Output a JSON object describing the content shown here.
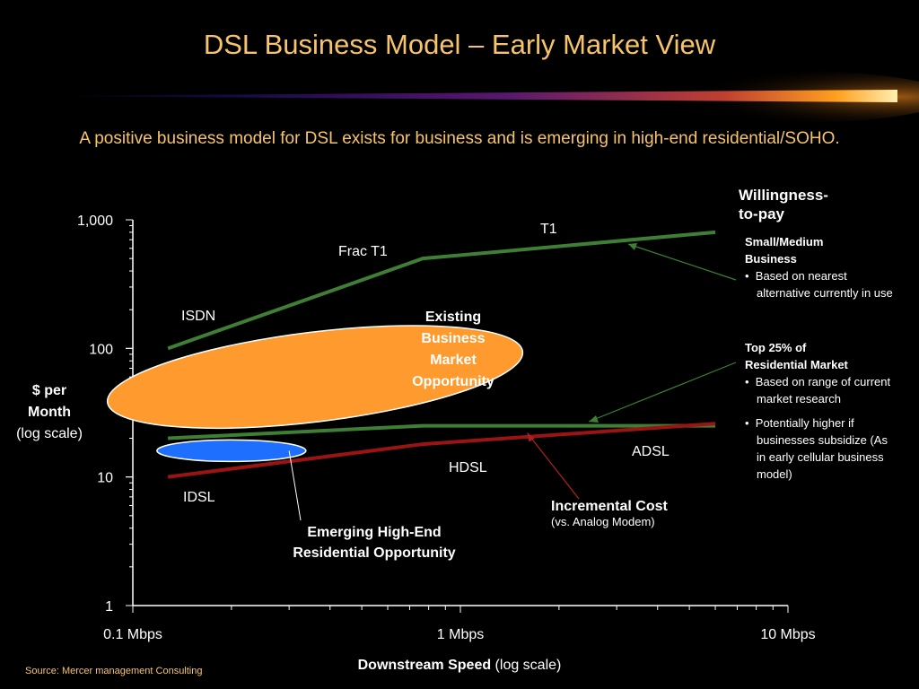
{
  "title": "DSL Business Model – Early Market View",
  "subtitle": "A positive business model for DSL exists for business and is emerging in high-end residential/SOHO.",
  "source": "Source: Mercer management Consulting",
  "colors": {
    "title": "#f7c46c",
    "willingness_line": "#3f7f35",
    "cost_line": "#9b1414",
    "ellipse_existing": "#ff9a2e",
    "ellipse_emerging": "#1f6fff"
  },
  "chart_data": {
    "type": "line",
    "x_scale": "log",
    "y_scale": "log",
    "xlim": [
      0.1,
      10
    ],
    "ylim": [
      1,
      1000
    ],
    "x_ticks": [
      "0.1 Mbps",
      "1 Mbps",
      "10 Mbps"
    ],
    "y_ticks": [
      "1",
      "10",
      "100",
      "1,000"
    ],
    "xlabel_bold": "Downstream Speed",
    "xlabel_rest": " (log scale)",
    "ylabel_line1": "$ per",
    "ylabel_line2": "Month",
    "ylabel_line3": "(log scale)",
    "series": [
      {
        "name": "Willingness-to-pay: Small/Medium Business",
        "x": [
          0.128,
          0.768,
          6.0
        ],
        "y": [
          100,
          500,
          800
        ]
      },
      {
        "name": "Willingness-to-pay: Top 25% of Residential Market",
        "x": [
          0.128,
          0.768,
          6.0
        ],
        "y": [
          20,
          25,
          25
        ]
      },
      {
        "name": "Incremental Cost",
        "x": [
          0.128,
          0.768,
          6.0
        ],
        "y": [
          10,
          18,
          26
        ]
      }
    ],
    "point_labels": {
      "isdn": "ISDN",
      "frac_t1": "Frac T1",
      "t1": "T1",
      "idsl": "IDSL",
      "hdsl": "HDSL",
      "adsl": "ADSL"
    }
  },
  "annotations": {
    "existing_line1": "Existing",
    "existing_line2": "Business",
    "existing_line3": "Market",
    "existing_line4": "Opportunity",
    "emerging_line1": "Emerging High-End",
    "emerging_line2": "Residential Opportunity",
    "incremental_title": "Incremental Cost",
    "incremental_sub": "(vs. Analog Modem)"
  },
  "willingness": {
    "line1": "Willingness-",
    "line2": "to-pay",
    "smb_head1": "Small/Medium",
    "smb_head2": "Business",
    "smb_bullet": "Based on nearest alternative currently in use",
    "res_head1": "Top 25% of",
    "res_head2": "Residential Market",
    "res_bullet1": "Based on range of current market research",
    "res_bullet2": "Potentially higher if businesses subsidize (As in early cellular business model)"
  }
}
